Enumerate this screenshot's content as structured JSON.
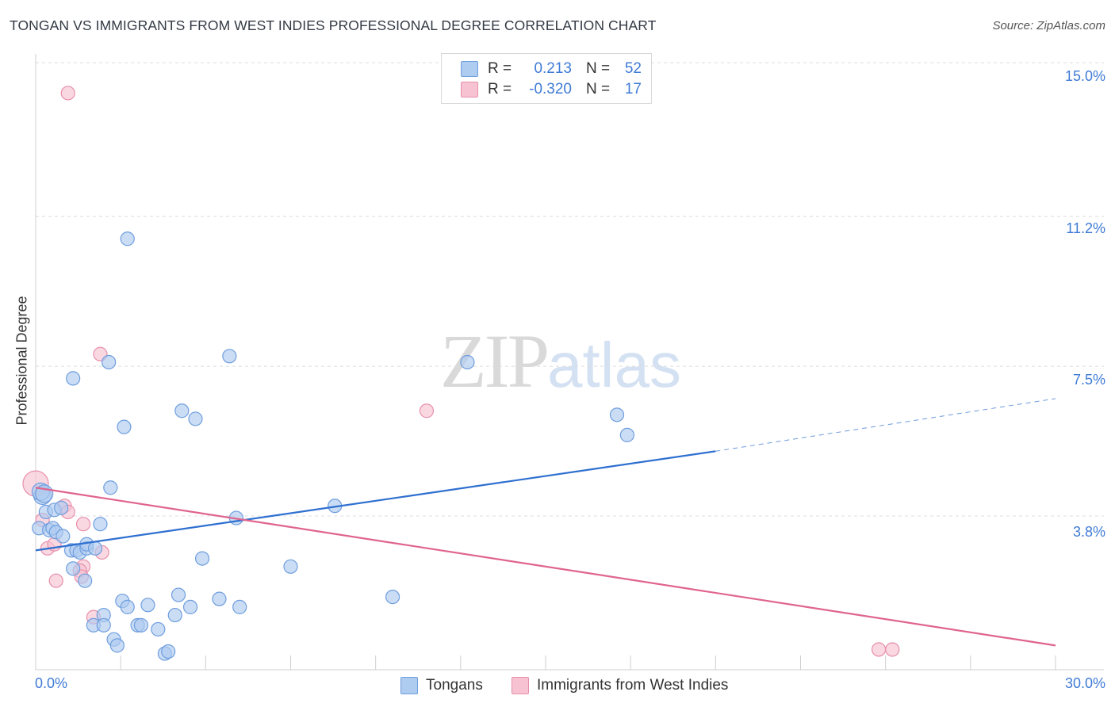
{
  "title": "TONGAN VS IMMIGRANTS FROM WEST INDIES PROFESSIONAL DEGREE CORRELATION CHART",
  "source": "Source: ZipAtlas.com",
  "watermark": {
    "zip": "ZIP",
    "atlas": "atlas"
  },
  "legend": {
    "rows": [
      {
        "r_label": "R =",
        "r_value": "0.213",
        "n_label": "N =",
        "n_value": "52"
      },
      {
        "r_label": "R =",
        "r_value": "-0.320",
        "n_label": "N =",
        "n_value": "17"
      }
    ]
  },
  "bottom_legend": [
    "Tongans",
    "Immigrants from West Indies"
  ],
  "colors": {
    "tongans_fill": "#aecbf0",
    "tongans_stroke": "#6f9ede",
    "tongans_line": "#2e6fd0",
    "westindies_fill": "#f7c3d3",
    "westindies_stroke": "#e78fab",
    "westindies_line": "#e0648e",
    "grid": "#dcdcdc",
    "tick_text": "#3f7bd6"
  },
  "chart_data": {
    "type": "scatter",
    "title": "TONGAN VS IMMIGRANTS FROM WEST INDIES PROFESSIONAL DEGREE CORRELATION CHART",
    "xlabel": "",
    "ylabel": "Professional Degree",
    "xlim": [
      0,
      30
    ],
    "ylim": [
      0,
      15
    ],
    "x_tick_labels": [
      "0.0%",
      "30.0%"
    ],
    "y_ticks": [
      3.8,
      7.5,
      11.2,
      15.0
    ],
    "y_tick_labels": [
      "3.8%",
      "7.5%",
      "11.2%",
      "15.0%"
    ],
    "grid": true,
    "legend_position": "top-center",
    "series": [
      {
        "name": "Tongans",
        "r": 0.213,
        "n": 52,
        "points": [
          [
            0.2,
            4.3
          ],
          [
            0.15,
            4.4
          ],
          [
            0.25,
            4.35
          ],
          [
            0.3,
            3.9
          ],
          [
            0.1,
            3.5
          ],
          [
            0.4,
            3.45
          ],
          [
            0.5,
            3.5
          ],
          [
            0.55,
            3.95
          ],
          [
            0.6,
            3.4
          ],
          [
            0.75,
            4.0
          ],
          [
            0.8,
            3.3
          ],
          [
            1.05,
            2.95
          ],
          [
            1.2,
            2.95
          ],
          [
            1.3,
            2.9
          ],
          [
            1.5,
            3.0
          ],
          [
            1.5,
            3.1
          ],
          [
            1.75,
            3.0
          ],
          [
            1.9,
            3.6
          ],
          [
            1.1,
            2.5
          ],
          [
            1.45,
            2.2
          ],
          [
            2.2,
            4.5
          ],
          [
            2.6,
            6.0
          ],
          [
            2.15,
            7.6
          ],
          [
            1.1,
            7.2
          ],
          [
            2.7,
            10.65
          ],
          [
            4.3,
            6.4
          ],
          [
            4.7,
            6.2
          ],
          [
            5.7,
            7.75
          ],
          [
            5.9,
            3.75
          ],
          [
            4.9,
            2.75
          ],
          [
            7.5,
            2.55
          ],
          [
            8.8,
            4.05
          ],
          [
            10.5,
            1.8
          ],
          [
            12.7,
            7.6
          ],
          [
            17.1,
            6.3
          ],
          [
            17.4,
            5.8
          ],
          [
            2.55,
            1.7
          ],
          [
            2.7,
            1.55
          ],
          [
            3.3,
            1.6
          ],
          [
            2.0,
            1.35
          ],
          [
            1.7,
            1.1
          ],
          [
            2.0,
            1.1
          ],
          [
            3.0,
            1.1
          ],
          [
            3.1,
            1.1
          ],
          [
            3.6,
            1.0
          ],
          [
            2.3,
            0.75
          ],
          [
            2.4,
            0.6
          ],
          [
            3.8,
            0.4
          ],
          [
            3.9,
            0.45
          ],
          [
            4.1,
            1.35
          ],
          [
            4.2,
            1.85
          ],
          [
            4.55,
            1.55
          ],
          [
            5.4,
            1.75
          ],
          [
            6.0,
            1.55
          ]
        ],
        "trend": {
          "x": [
            0,
            20
          ],
          "y": [
            2.95,
            5.4
          ],
          "dashed_extension": {
            "x": [
              20,
              30
            ],
            "y": [
              5.4,
              6.7
            ]
          }
        }
      },
      {
        "name": "Immigrants from West Indies",
        "r": -0.32,
        "n": 17,
        "points": [
          [
            0.0,
            4.6
          ],
          [
            0.2,
            3.7
          ],
          [
            0.35,
            3.0
          ],
          [
            0.55,
            3.1
          ],
          [
            0.85,
            4.05
          ],
          [
            0.95,
            3.9
          ],
          [
            1.4,
            2.55
          ],
          [
            1.3,
            2.45
          ],
          [
            1.35,
            2.3
          ],
          [
            0.6,
            2.2
          ],
          [
            1.4,
            3.6
          ],
          [
            1.95,
            2.9
          ],
          [
            1.9,
            7.8
          ],
          [
            1.7,
            1.3
          ],
          [
            0.95,
            14.25
          ],
          [
            11.5,
            6.4
          ],
          [
            24.8,
            0.5
          ],
          [
            25.2,
            0.5
          ]
        ],
        "trend": {
          "x": [
            0,
            30
          ],
          "y": [
            4.5,
            0.6
          ]
        }
      }
    ]
  }
}
